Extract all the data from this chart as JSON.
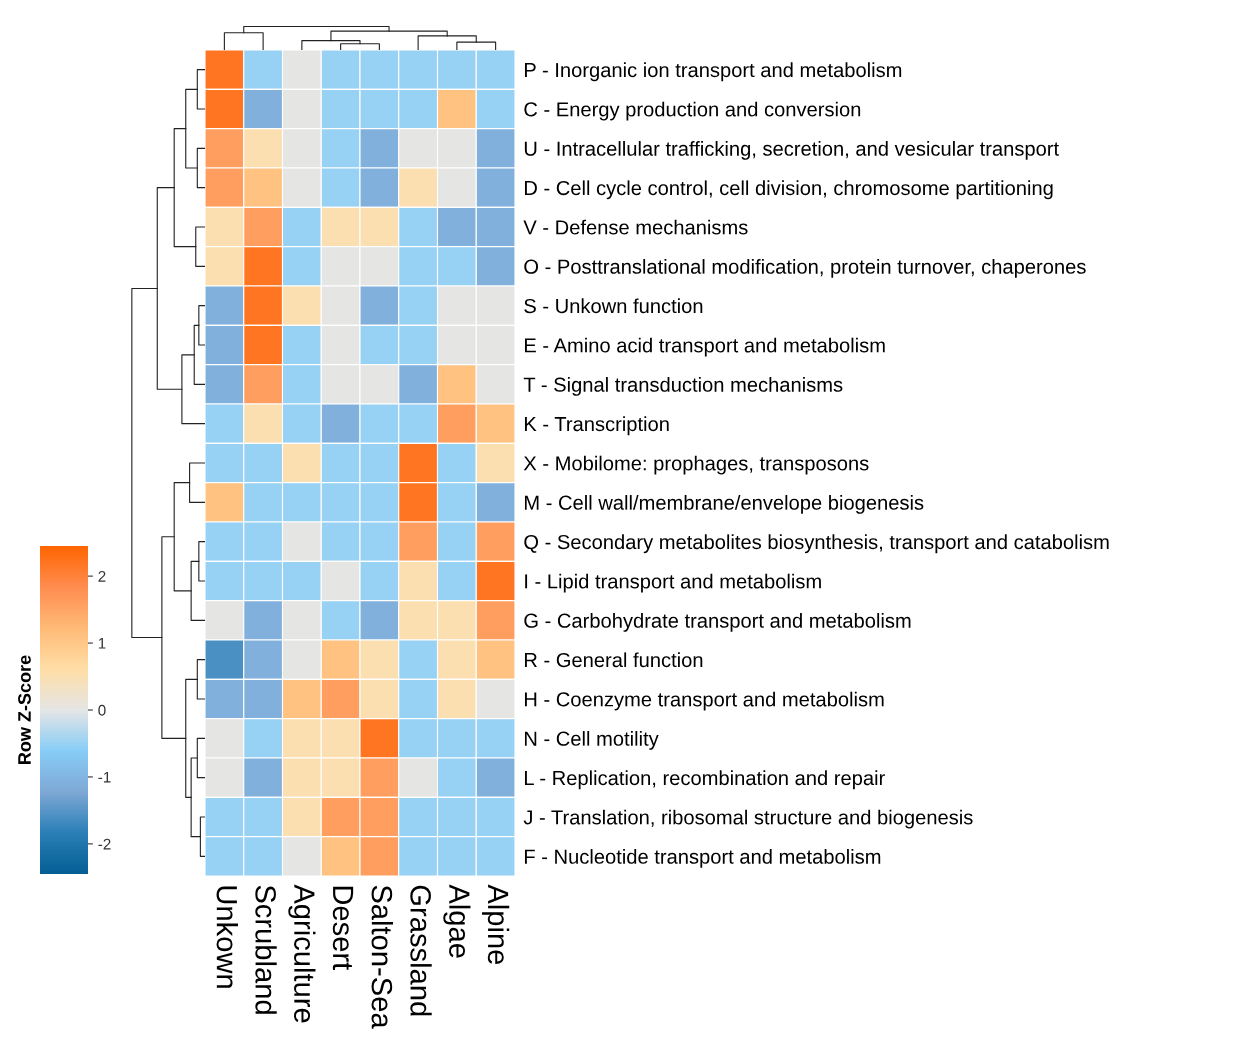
{
  "chart_data": {
    "type": "heatmap",
    "clabel": "Row Z-Score",
    "clim": [
      -2.45,
      2.45
    ],
    "cticks": [
      -2,
      -1,
      0,
      1,
      2
    ],
    "colors": [
      "#045e94",
      "#2b80b8",
      "#7fa9d6",
      "#87cdf7",
      "#e5e5e5",
      "#ffdea6",
      "#ffbb77",
      "#ff8c50",
      "#ff6600"
    ],
    "categories": [
      "Unkown",
      "Scrubland",
      "Agriculture",
      "Desert",
      "Salton-Sea",
      "Grassland",
      "Algae",
      "Alpine"
    ],
    "y_categories": [
      "P - Inorganic ion transport and metabolism",
      "C - Energy production and conversion",
      "U - Intracellular trafficking, secretion, and vesicular transport",
      "D - Cell cycle control, cell division, chromosome partitioning",
      "V - Defense mechanisms",
      "O - Posttranslational modification, protein turnover, chaperones",
      "S - Unkown function",
      "E - Amino acid transport and metabolism",
      "T - Signal transduction mechanisms",
      "K - Transcription",
      "X - Mobilome: prophages, transposons",
      "M - Cell wall/membrane/envelope biogenesis",
      "Q - Secondary metabolites biosynthesis, transport and catabolism",
      "I - Lipid transport and metabolism",
      "G - Carbohydrate transport and metabolism",
      "R - General function",
      "H - Coenzyme transport and metabolism",
      "N - Cell motility",
      "L - Replication, recombination and repair",
      "J - Translation, ribosomal structure and biogenesis",
      "F - Nucleotide transport and metabolism"
    ],
    "cells": [
      [
        2.2,
        -0.5,
        0,
        -0.5,
        -0.5,
        -0.5,
        -0.5,
        -0.5
      ],
      [
        2.2,
        -1.1,
        0,
        -0.5,
        -0.5,
        -0.5,
        1.1,
        -0.5
      ],
      [
        1.6,
        0.5,
        0,
        -0.5,
        -1.1,
        0,
        0,
        -1.1
      ],
      [
        1.6,
        1.1,
        0,
        -0.5,
        -1.1,
        0.5,
        0,
        -1.1
      ],
      [
        0.5,
        1.6,
        -0.5,
        0.5,
        0.5,
        -0.5,
        -1.1,
        -1.1
      ],
      [
        0.5,
        2.2,
        -0.5,
        0,
        0,
        -0.5,
        -0.5,
        -1.1
      ],
      [
        -1.1,
        2.2,
        0.5,
        0,
        -1.1,
        -0.5,
        0,
        0
      ],
      [
        -1.1,
        2.2,
        -0.5,
        0,
        -0.5,
        -0.5,
        0,
        0
      ],
      [
        -1.1,
        1.6,
        -0.5,
        0,
        0,
        -1.1,
        1.1,
        0
      ],
      [
        -0.5,
        0.5,
        -0.5,
        -1.1,
        -0.5,
        -0.5,
        1.6,
        1.1
      ],
      [
        -0.5,
        -0.5,
        0.5,
        -0.5,
        -0.5,
        2.2,
        -0.5,
        0.5
      ],
      [
        1.1,
        -0.5,
        -0.5,
        -0.5,
        -0.5,
        2.2,
        -0.5,
        -1.1
      ],
      [
        -0.5,
        -0.5,
        0,
        -0.5,
        -0.5,
        1.6,
        -0.5,
        1.6
      ],
      [
        -0.5,
        -0.5,
        -0.5,
        0,
        -0.5,
        0.5,
        -0.5,
        2.2
      ],
      [
        0,
        -1.1,
        0,
        -0.5,
        -1.1,
        0.5,
        0.5,
        1.6
      ],
      [
        -1.6,
        -1.1,
        0,
        1.1,
        0.5,
        -0.5,
        0.5,
        1.1
      ],
      [
        -1.1,
        -1.1,
        1.1,
        1.6,
        0.5,
        -0.5,
        0.5,
        0
      ],
      [
        0,
        -0.5,
        0.5,
        0.5,
        2.2,
        -0.5,
        -0.5,
        -0.5
      ],
      [
        0,
        -1.1,
        0.5,
        0.5,
        1.6,
        0,
        -0.5,
        -1.1
      ],
      [
        -0.5,
        -0.5,
        0.5,
        1.6,
        1.6,
        -0.5,
        -0.5,
        -0.5
      ],
      [
        -0.5,
        -0.5,
        0,
        1.1,
        1.6,
        -0.5,
        -0.5,
        -0.5
      ]
    ]
  }
}
